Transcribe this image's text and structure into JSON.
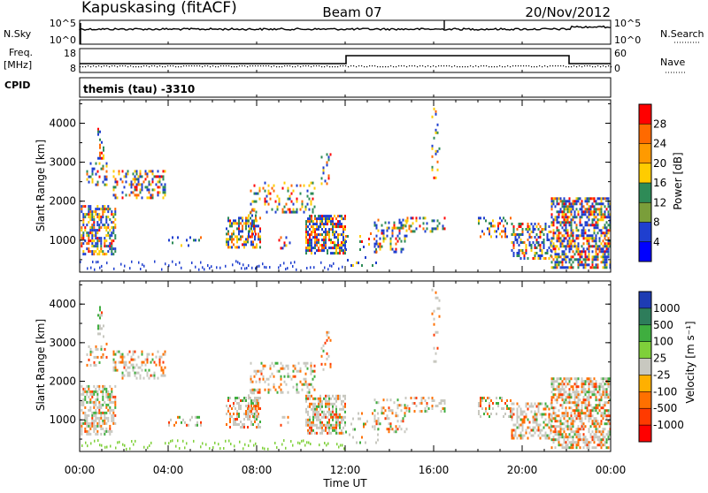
{
  "header": {
    "station": "Kapuskasing (fitACF)",
    "beam": "Beam 07",
    "date": "20/Nov/2012"
  },
  "top_panels": {
    "noise": {
      "left_label": "N.Sky",
      "right_label": "N.Search",
      "left_ticks": [
        "10^5",
        "10^0"
      ],
      "right_ticks": [
        "10^5",
        "10^0"
      ]
    },
    "freq": {
      "left_label_1": "Freq.",
      "left_label_2": "[MHz]",
      "right_label": "Nave",
      "left_ticks": [
        "18",
        "8"
      ],
      "right_ticks": [
        "60",
        "0"
      ]
    },
    "cpid": {
      "label": "CPID",
      "text": "themis (tau) -3310"
    }
  },
  "chart_data": [
    {
      "type": "heatmap",
      "title": "",
      "ylabel": "Slant Range [km]",
      "xlabel": "",
      "ylim": [
        180,
        4600
      ],
      "yticks": [
        "1000",
        "2000",
        "3000",
        "4000"
      ],
      "colorbar": {
        "label": "Power [dB]",
        "ticks": [
          "28",
          "24",
          "20",
          "16",
          "12",
          "8",
          "4"
        ],
        "colors": [
          "#ff0000",
          "#ff6a00",
          "#ff9a00",
          "#ffcc00",
          "#2e8b57",
          "#7a9e3a",
          "#1f3fcf",
          "#0000ff"
        ]
      }
    },
    {
      "type": "heatmap",
      "title": "",
      "ylabel": "Slant Range [km]",
      "xlabel": "Time UT",
      "ylim": [
        180,
        4600
      ],
      "yticks": [
        "1000",
        "2000",
        "3000",
        "4000"
      ],
      "xticks": [
        "00:00",
        "04:00",
        "08:00",
        "12:00",
        "16:00",
        "20:00",
        "00:00"
      ],
      "colorbar": {
        "label": "Velocity [m s⁻¹]",
        "ticks": [
          "1000",
          "500",
          "100",
          "25",
          "-25",
          "-100",
          "-500",
          "-1000"
        ],
        "colors": [
          "#1e3cb4",
          "#2e7d5b",
          "#3fae3f",
          "#7fd03a",
          "#c8c8c0",
          "#ffb000",
          "#ff7000",
          "#ff3a00",
          "#ff0000"
        ]
      }
    }
  ]
}
